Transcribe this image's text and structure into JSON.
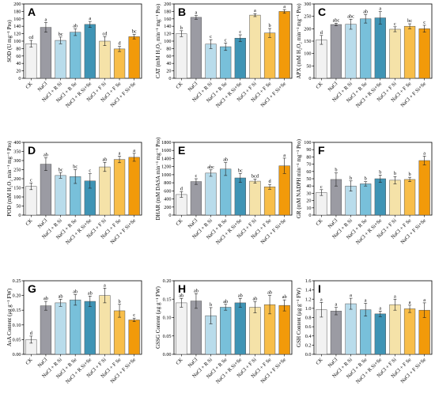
{
  "categories": [
    "CK",
    "NaCl",
    "NaCl + R Si",
    "NaCl + R Se",
    "NaCl + R Si+Se",
    "NaCl + F Si",
    "NaCl + F Se",
    "NaCl + F Si+Se"
  ],
  "colors": [
    "#f2f2f2",
    "#9b9ba3",
    "#b9dceb",
    "#78c0da",
    "#3f94b5",
    "#f5e2a8",
    "#f8be4a",
    "#f29a0a"
  ],
  "chart_data": [
    {
      "type": "bar",
      "panel": "A",
      "ylabel": "SOD (U mg⁻¹ Pro)",
      "ylim": [
        0,
        200
      ],
      "yticks": [
        0,
        20,
        40,
        60,
        80,
        100,
        120,
        140,
        160,
        180,
        200
      ],
      "categories": [
        "CK",
        "NaCl",
        "NaCl + R Si",
        "NaCl + R Se",
        "NaCl + R Si+Se",
        "NaCl + F Si",
        "NaCl + F Se",
        "NaCl + F Si+Se"
      ],
      "values": [
        93,
        137,
        102,
        124,
        145,
        100,
        79,
        112
      ],
      "errors": [
        9,
        13,
        9,
        9,
        8,
        12,
        7,
        6
      ],
      "letters": [
        "cd",
        "a",
        "bc",
        "ab",
        "a",
        "cd",
        "d",
        "bc"
      ]
    },
    {
      "type": "bar",
      "panel": "B",
      "ylabel": "CAT (mM H₂O₂ min⁻¹ mg⁻¹ Pro)",
      "ylim": [
        0,
        200
      ],
      "yticks": [
        0,
        20,
        40,
        60,
        80,
        100,
        120,
        140,
        160,
        180,
        200
      ],
      "categories": [
        "CK",
        "NaCl",
        "NaCl + R Si",
        "NaCl + R Se",
        "NaCl + R Si+Se",
        "NaCl + F Si",
        "NaCl + F Se",
        "NaCl + F Si+Se"
      ],
      "values": [
        120,
        164,
        92,
        85,
        108,
        170,
        122,
        180
      ],
      "errors": [
        8,
        5,
        12,
        10,
        9,
        4,
        12,
        5
      ],
      "letters": [
        "b",
        "a",
        "c",
        "c",
        "c",
        "a",
        "b",
        "a"
      ]
    },
    {
      "type": "bar",
      "panel": "C",
      "ylabel": "APX (mM H₂O₂ min⁻¹ mg⁻¹ Pro)",
      "ylim": [
        0,
        300
      ],
      "yticks": [
        0,
        50,
        100,
        150,
        200,
        250,
        300
      ],
      "categories": [
        "CK",
        "NaCl",
        "NaCl + R Si",
        "NaCl + R Se",
        "NaCl + R Si+Se",
        "NaCl + F Si",
        "NaCl + F Se",
        "NaCl + F Si+Se"
      ],
      "values": [
        155,
        217,
        218,
        240,
        244,
        198,
        210,
        200
      ],
      "errors": [
        18,
        5,
        20,
        17,
        25,
        10,
        10,
        14
      ],
      "letters": [
        "d",
        "abc",
        "abc",
        "ab",
        "a",
        "c",
        "bc",
        "c"
      ]
    },
    {
      "type": "bar",
      "panel": "D",
      "ylabel": "POD (mM H₂O₂ min⁻¹ mg⁻¹ Pro)",
      "ylim": [
        0,
        400
      ],
      "yticks": [
        0,
        50,
        100,
        150,
        200,
        250,
        300,
        350,
        400
      ],
      "categories": [
        "CK",
        "NaCl",
        "NaCl + R Si",
        "NaCl + R Se",
        "NaCl + R Si+Se",
        "NaCl + F Si",
        "NaCl + F Se",
        "NaCl + F Si+Se"
      ],
      "values": [
        158,
        280,
        218,
        212,
        188,
        265,
        306,
        318
      ],
      "errors": [
        18,
        35,
        15,
        38,
        40,
        25,
        18,
        22
      ],
      "letters": [
        "c",
        "ab",
        "bc",
        "bc",
        "c",
        "ab",
        "a",
        "a"
      ]
    },
    {
      "type": "bar",
      "panel": "E",
      "ylabel": "DHAR (mM DASA min⁻¹ mg⁻¹ Pro)",
      "ylim": [
        0,
        1800
      ],
      "yticks": [
        0,
        200,
        400,
        600,
        800,
        1000,
        1200,
        1400,
        1600,
        1800
      ],
      "categories": [
        "CK",
        "NaCl",
        "NaCl + R Si",
        "NaCl + R Se",
        "NaCl + R Si+Se",
        "NaCl + F Si",
        "NaCl + F Se",
        "NaCl + F Si+Se"
      ],
      "values": [
        510,
        830,
        1040,
        1140,
        920,
        840,
        700,
        1220
      ],
      "errors": [
        70,
        70,
        80,
        160,
        110,
        50,
        60,
        190
      ],
      "letters": [
        "d",
        "c",
        "abc",
        "ab",
        "bc",
        "bcd",
        "d",
        "a"
      ]
    },
    {
      "type": "bar",
      "panel": "F",
      "ylabel": "GR (mM NADPH min⁻¹ mg⁻¹ Pro)",
      "ylim": [
        0,
        100
      ],
      "yticks": [
        0,
        10,
        20,
        30,
        40,
        50,
        60,
        70,
        80,
        90,
        100
      ],
      "categories": [
        "CK",
        "NaCl",
        "NaCl + R Si",
        "NaCl + R Se",
        "NaCl + R Si+Se",
        "NaCl + F Si",
        "NaCl + F Se",
        "NaCl + F Si+Se"
      ],
      "values": [
        31,
        49,
        40,
        43,
        50,
        48,
        49,
        75
      ],
      "errors": [
        4,
        9,
        7,
        3,
        5,
        5,
        3,
        6
      ],
      "letters": [
        "c",
        "b",
        "b",
        "b",
        "b",
        "b",
        "b",
        "a"
      ]
    },
    {
      "type": "bar",
      "panel": "G",
      "ylabel": "AsA Content (μg g⁻¹ FW)",
      "ylim": [
        0,
        0.25
      ],
      "yticks": [
        0.0,
        0.05,
        0.1,
        0.15,
        0.2,
        0.25
      ],
      "categories": [
        "CK",
        "NaCl",
        "NaCl + R Si",
        "NaCl + R Se",
        "NaCl + R Si+Se",
        "NaCl + F Si",
        "NaCl + F Se",
        "NaCl + F Si+Se"
      ],
      "values": [
        0.05,
        0.165,
        0.175,
        0.185,
        0.18,
        0.2,
        0.148,
        0.117
      ],
      "errors": [
        0.012,
        0.015,
        0.012,
        0.018,
        0.018,
        0.025,
        0.022,
        0.006
      ],
      "letters": [
        "d",
        "ab",
        "ab",
        "ab",
        "ab",
        "a",
        "b",
        "c"
      ]
    },
    {
      "type": "bar",
      "panel": "H",
      "ylabel": "GSSG Content (μg g⁻¹ FW)",
      "ylim": [
        0,
        0.2
      ],
      "yticks": [
        0.0,
        0.05,
        0.1,
        0.15,
        0.2
      ],
      "categories": [
        "CK",
        "NaCl",
        "NaCl + R Si",
        "NaCl + R Se",
        "NaCl + R Si+Se",
        "NaCl + F Si",
        "NaCl + F Se",
        "NaCl + F Si+Se"
      ],
      "values": [
        0.14,
        0.145,
        0.105,
        0.128,
        0.14,
        0.128,
        0.135,
        0.133
      ],
      "errors": [
        0.012,
        0.02,
        0.022,
        0.008,
        0.012,
        0.015,
        0.025,
        0.015
      ],
      "letters": [
        "ab",
        "ab",
        "b",
        "ab",
        "ab",
        "ab",
        "ab",
        "ab"
      ]
    },
    {
      "type": "bar",
      "panel": "I",
      "ylabel": "GSH Content (μg g⁻¹ FW)",
      "ylim": [
        0,
        1.6
      ],
      "yticks": [
        0.0,
        0.2,
        0.4,
        0.6,
        0.8,
        1.0,
        1.2,
        1.4,
        1.6
      ],
      "categories": [
        "CK",
        "NaCl",
        "NaCl + R Si",
        "NaCl + R Se",
        "NaCl + R Si+Se",
        "NaCl + F Si",
        "NaCl + F Se",
        "NaCl + F Si+Se"
      ],
      "values": [
        0.97,
        0.94,
        1.1,
        0.97,
        0.88,
        1.08,
        0.99,
        0.96
      ],
      "errors": [
        0.16,
        0.08,
        0.12,
        0.14,
        0.06,
        0.12,
        0.08,
        0.16
      ],
      "letters": [
        "a",
        "a",
        "a",
        "a",
        "a",
        "a",
        "a",
        "a"
      ]
    }
  ]
}
